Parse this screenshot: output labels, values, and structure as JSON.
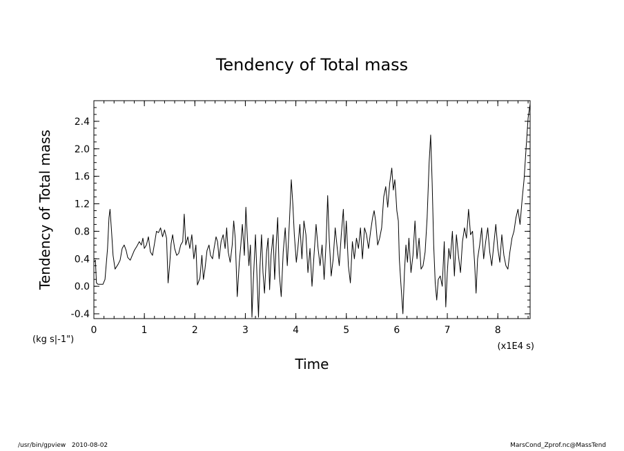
{
  "chart_data": {
    "type": "line",
    "title": "Tendency of Total mass",
    "xlabel": "Time",
    "ylabel": "Tendency of Total mass",
    "x_unit_label": "(x1E4 s)",
    "y_unit_label": "(kg s|-1\")",
    "xlim": [
      0,
      8.64
    ],
    "ylim": [
      -0.47,
      2.7
    ],
    "xticks": [
      0,
      1,
      2,
      3,
      4,
      5,
      6,
      7,
      8
    ],
    "yticks": [
      -0.4,
      0.0,
      0.4,
      0.8,
      1.2,
      1.6,
      2.0,
      2.4
    ],
    "ytick_labels": [
      "-0.4",
      "0.0",
      "0.4",
      "0.8",
      "1.2",
      "1.6",
      "2.0",
      "2.4"
    ],
    "grid": false,
    "series": [
      {
        "color": "#000000",
        "points": [
          [
            0.0,
            0.35
          ],
          [
            0.03,
            0.38
          ],
          [
            0.05,
            0.05
          ],
          [
            0.08,
            0.03
          ],
          [
            0.12,
            0.03
          ],
          [
            0.18,
            0.03
          ],
          [
            0.22,
            0.1
          ],
          [
            0.27,
            0.55
          ],
          [
            0.3,
            1.0
          ],
          [
            0.32,
            1.12
          ],
          [
            0.35,
            0.8
          ],
          [
            0.38,
            0.45
          ],
          [
            0.42,
            0.25
          ],
          [
            0.48,
            0.32
          ],
          [
            0.52,
            0.38
          ],
          [
            0.56,
            0.55
          ],
          [
            0.6,
            0.6
          ],
          [
            0.64,
            0.52
          ],
          [
            0.67,
            0.42
          ],
          [
            0.72,
            0.38
          ],
          [
            0.76,
            0.45
          ],
          [
            0.8,
            0.52
          ],
          [
            0.85,
            0.58
          ],
          [
            0.9,
            0.65
          ],
          [
            0.94,
            0.6
          ],
          [
            0.97,
            0.7
          ],
          [
            1.0,
            0.55
          ],
          [
            1.04,
            0.6
          ],
          [
            1.08,
            0.72
          ],
          [
            1.12,
            0.5
          ],
          [
            1.16,
            0.45
          ],
          [
            1.2,
            0.62
          ],
          [
            1.24,
            0.8
          ],
          [
            1.28,
            0.78
          ],
          [
            1.32,
            0.85
          ],
          [
            1.36,
            0.72
          ],
          [
            1.4,
            0.82
          ],
          [
            1.44,
            0.7
          ],
          [
            1.47,
            0.05
          ],
          [
            1.5,
            0.3
          ],
          [
            1.53,
            0.62
          ],
          [
            1.56,
            0.75
          ],
          [
            1.6,
            0.55
          ],
          [
            1.64,
            0.45
          ],
          [
            1.68,
            0.48
          ],
          [
            1.72,
            0.6
          ],
          [
            1.76,
            0.65
          ],
          [
            1.79,
            1.05
          ],
          [
            1.82,
            0.6
          ],
          [
            1.86,
            0.72
          ],
          [
            1.9,
            0.55
          ],
          [
            1.94,
            0.75
          ],
          [
            1.98,
            0.4
          ],
          [
            2.02,
            0.6
          ],
          [
            2.05,
            0.02
          ],
          [
            2.1,
            0.12
          ],
          [
            2.14,
            0.45
          ],
          [
            2.17,
            0.1
          ],
          [
            2.2,
            0.25
          ],
          [
            2.24,
            0.52
          ],
          [
            2.28,
            0.6
          ],
          [
            2.31,
            0.45
          ],
          [
            2.35,
            0.4
          ],
          [
            2.38,
            0.55
          ],
          [
            2.42,
            0.72
          ],
          [
            2.45,
            0.65
          ],
          [
            2.48,
            0.4
          ],
          [
            2.52,
            0.65
          ],
          [
            2.56,
            0.75
          ],
          [
            2.6,
            0.55
          ],
          [
            2.63,
            0.85
          ],
          [
            2.66,
            0.5
          ],
          [
            2.7,
            0.35
          ],
          [
            2.74,
            0.6
          ],
          [
            2.77,
            0.95
          ],
          [
            2.8,
            0.7
          ],
          [
            2.84,
            -0.15
          ],
          [
            2.88,
            0.35
          ],
          [
            2.91,
            0.6
          ],
          [
            2.94,
            0.9
          ],
          [
            2.98,
            0.45
          ],
          [
            3.01,
            1.15
          ],
          [
            3.04,
            0.7
          ],
          [
            3.07,
            0.3
          ],
          [
            3.1,
            0.6
          ],
          [
            3.13,
            -0.45
          ],
          [
            3.16,
            0.1
          ],
          [
            3.2,
            0.75
          ],
          [
            3.23,
            0.15
          ],
          [
            3.26,
            -0.45
          ],
          [
            3.29,
            0.3
          ],
          [
            3.32,
            0.75
          ],
          [
            3.35,
            0.2
          ],
          [
            3.38,
            -0.1
          ],
          [
            3.42,
            0.5
          ],
          [
            3.45,
            0.7
          ],
          [
            3.48,
            -0.05
          ],
          [
            3.51,
            0.45
          ],
          [
            3.55,
            0.75
          ],
          [
            3.58,
            0.1
          ],
          [
            3.61,
            0.6
          ],
          [
            3.64,
            1.0
          ],
          [
            3.67,
            0.2
          ],
          [
            3.71,
            -0.15
          ],
          [
            3.75,
            0.5
          ],
          [
            3.79,
            0.85
          ],
          [
            3.83,
            0.3
          ],
          [
            3.87,
            0.9
          ],
          [
            3.91,
            1.55
          ],
          [
            3.94,
            1.2
          ],
          [
            3.97,
            0.75
          ],
          [
            4.01,
            0.35
          ],
          [
            4.04,
            0.55
          ],
          [
            4.08,
            0.9
          ],
          [
            4.12,
            0.4
          ],
          [
            4.16,
            0.95
          ],
          [
            4.2,
            0.75
          ],
          [
            4.24,
            0.2
          ],
          [
            4.28,
            0.55
          ],
          [
            4.32,
            0.0
          ],
          [
            4.36,
            0.45
          ],
          [
            4.4,
            0.9
          ],
          [
            4.44,
            0.55
          ],
          [
            4.48,
            0.3
          ],
          [
            4.52,
            0.6
          ],
          [
            4.56,
            0.1
          ],
          [
            4.6,
            0.65
          ],
          [
            4.63,
            1.32
          ],
          [
            4.66,
            0.7
          ],
          [
            4.7,
            0.15
          ],
          [
            4.74,
            0.4
          ],
          [
            4.78,
            0.85
          ],
          [
            4.82,
            0.55
          ],
          [
            4.86,
            0.3
          ],
          [
            4.9,
            0.75
          ],
          [
            4.94,
            1.12
          ],
          [
            4.97,
            0.55
          ],
          [
            5.0,
            0.95
          ],
          [
            5.04,
            0.3
          ],
          [
            5.08,
            0.05
          ],
          [
            5.12,
            0.65
          ],
          [
            5.16,
            0.4
          ],
          [
            5.2,
            0.7
          ],
          [
            5.24,
            0.55
          ],
          [
            5.28,
            0.85
          ],
          [
            5.32,
            0.4
          ],
          [
            5.36,
            0.85
          ],
          [
            5.4,
            0.75
          ],
          [
            5.44,
            0.55
          ],
          [
            5.48,
            0.8
          ],
          [
            5.52,
            1.0
          ],
          [
            5.55,
            1.1
          ],
          [
            5.58,
            0.95
          ],
          [
            5.62,
            0.6
          ],
          [
            5.66,
            0.7
          ],
          [
            5.7,
            0.85
          ],
          [
            5.74,
            1.3
          ],
          [
            5.78,
            1.45
          ],
          [
            5.82,
            1.15
          ],
          [
            5.86,
            1.5
          ],
          [
            5.9,
            1.72
          ],
          [
            5.93,
            1.4
          ],
          [
            5.96,
            1.55
          ],
          [
            5.98,
            1.35
          ],
          [
            6.0,
            1.1
          ],
          [
            6.03,
            0.95
          ],
          [
            6.05,
            0.4
          ],
          [
            6.08,
            0.05
          ],
          [
            6.12,
            -0.4
          ],
          [
            6.15,
            0.2
          ],
          [
            6.18,
            0.6
          ],
          [
            6.21,
            0.35
          ],
          [
            6.24,
            0.7
          ],
          [
            6.28,
            0.2
          ],
          [
            6.32,
            0.45
          ],
          [
            6.36,
            0.95
          ],
          [
            6.4,
            0.4
          ],
          [
            6.44,
            0.7
          ],
          [
            6.48,
            0.25
          ],
          [
            6.52,
            0.3
          ],
          [
            6.56,
            0.5
          ],
          [
            6.6,
            1.0
          ],
          [
            6.64,
            1.8
          ],
          [
            6.67,
            2.2
          ],
          [
            6.7,
            1.5
          ],
          [
            6.73,
            0.6
          ],
          [
            6.76,
            0.05
          ],
          [
            6.79,
            -0.2
          ],
          [
            6.82,
            0.1
          ],
          [
            6.86,
            0.15
          ],
          [
            6.9,
            0.0
          ],
          [
            6.94,
            0.65
          ],
          [
            6.97,
            -0.3
          ],
          [
            7.0,
            0.2
          ],
          [
            7.03,
            0.55
          ],
          [
            7.06,
            0.4
          ],
          [
            7.1,
            0.8
          ],
          [
            7.14,
            0.15
          ],
          [
            7.18,
            0.75
          ],
          [
            7.22,
            0.45
          ],
          [
            7.26,
            0.2
          ],
          [
            7.3,
            0.65
          ],
          [
            7.34,
            0.85
          ],
          [
            7.38,
            0.7
          ],
          [
            7.42,
            1.12
          ],
          [
            7.46,
            0.75
          ],
          [
            7.5,
            0.8
          ],
          [
            7.54,
            0.35
          ],
          [
            7.57,
            -0.1
          ],
          [
            7.6,
            0.4
          ],
          [
            7.64,
            0.6
          ],
          [
            7.68,
            0.85
          ],
          [
            7.72,
            0.4
          ],
          [
            7.76,
            0.65
          ],
          [
            7.8,
            0.85
          ],
          [
            7.84,
            0.5
          ],
          [
            7.88,
            0.3
          ],
          [
            7.92,
            0.6
          ],
          [
            7.96,
            0.9
          ],
          [
            8.0,
            0.55
          ],
          [
            8.04,
            0.35
          ],
          [
            8.08,
            0.75
          ],
          [
            8.12,
            0.45
          ],
          [
            8.16,
            0.3
          ],
          [
            8.2,
            0.25
          ],
          [
            8.24,
            0.5
          ],
          [
            8.28,
            0.7
          ],
          [
            8.32,
            0.8
          ],
          [
            8.36,
            1.0
          ],
          [
            8.4,
            1.12
          ],
          [
            8.44,
            0.9
          ],
          [
            8.48,
            1.25
          ],
          [
            8.52,
            1.55
          ],
          [
            8.56,
            2.0
          ],
          [
            8.6,
            2.45
          ],
          [
            8.64,
            2.65
          ]
        ]
      }
    ]
  },
  "footer": {
    "left": "/usr/bin/gpview   2010-08-02",
    "right": "MarsCond_Zprof.nc@MassTend"
  }
}
